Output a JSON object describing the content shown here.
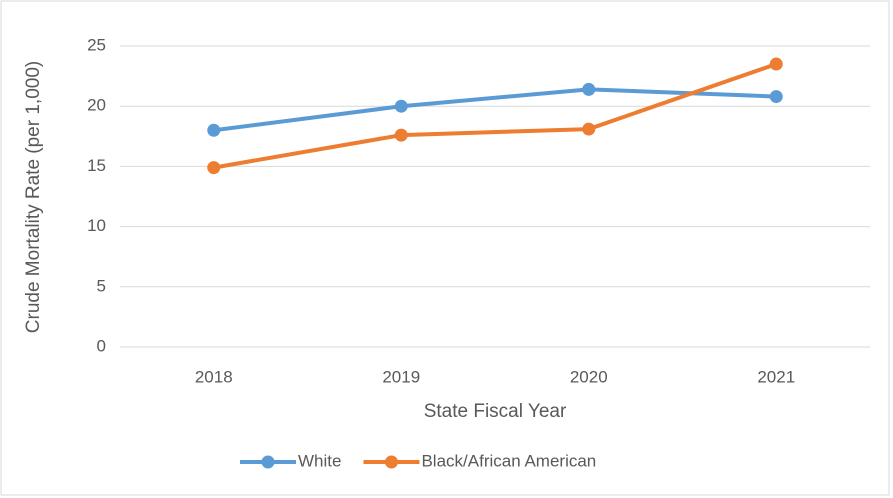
{
  "chart_data": {
    "type": "line",
    "categories": [
      "2018",
      "2019",
      "2020",
      "2021"
    ],
    "series": [
      {
        "name": "White",
        "color": "#5b9bd5",
        "values": [
          18.0,
          20.0,
          21.4,
          20.8
        ]
      },
      {
        "name": "Black/African American",
        "color": "#ed7d31",
        "values": [
          14.9,
          17.6,
          18.1,
          23.5
        ]
      }
    ],
    "xlabel": "State Fiscal Year",
    "ylabel": "Crude Mortality Rate (per 1,000)",
    "ylim": [
      0,
      25
    ],
    "yticks": [
      0,
      5,
      10,
      15,
      20,
      25
    ],
    "grid": true,
    "legend": "bottom"
  }
}
